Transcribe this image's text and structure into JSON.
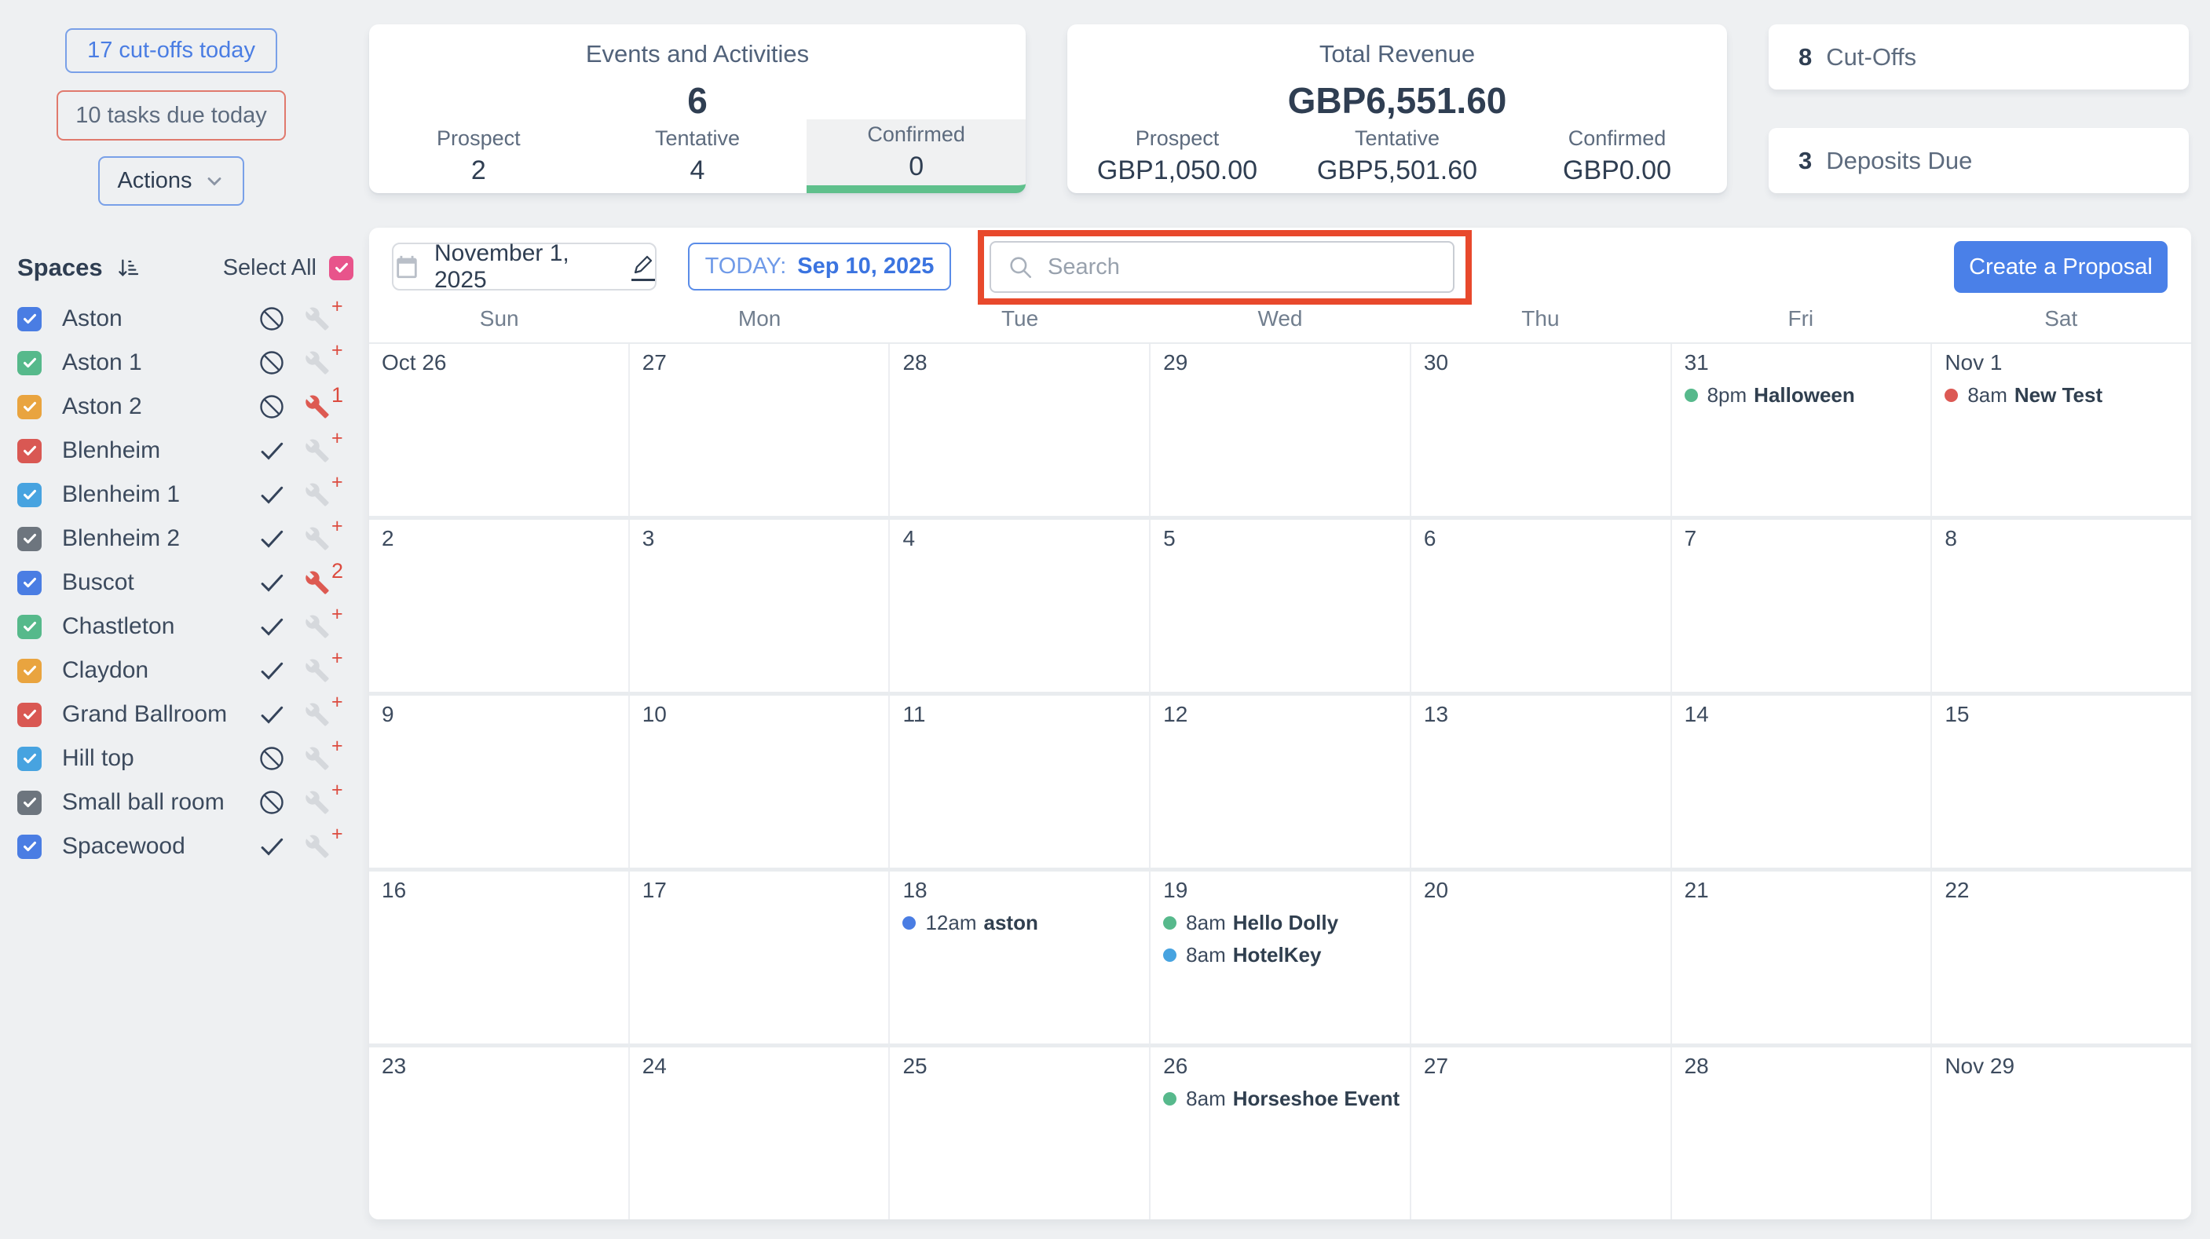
{
  "top_left": {
    "cutoffs_button": "17 cut-offs today",
    "tasks_button": "10 tasks due today",
    "actions_button": "Actions"
  },
  "stats": {
    "events": {
      "title": "Events and Activities",
      "total": "6",
      "columns": [
        {
          "label": "Prospect",
          "value": "2",
          "selected": false
        },
        {
          "label": "Tentative",
          "value": "4",
          "selected": false
        },
        {
          "label": "Confirmed",
          "value": "0",
          "selected": true
        }
      ]
    },
    "revenue": {
      "title": "Total Revenue",
      "total": "GBP6,551.60",
      "columns": [
        {
          "label": "Prospect",
          "value": "GBP1,050.00"
        },
        {
          "label": "Tentative",
          "value": "GBP5,501.60"
        },
        {
          "label": "Confirmed",
          "value": "GBP0.00"
        }
      ]
    },
    "side_cards": [
      {
        "count": "8",
        "label": "Cut-Offs"
      },
      {
        "count": "3",
        "label": "Deposits Due"
      }
    ]
  },
  "sidebar": {
    "title": "Spaces",
    "select_all_label": "Select All",
    "select_all_checked": true,
    "items": [
      {
        "label": "Aston",
        "checkbox_color": "#4a7de3",
        "status": "blocked",
        "wrench_badge": "+",
        "wrench_alert": false
      },
      {
        "label": "Aston 1",
        "checkbox_color": "#56b98b",
        "status": "blocked",
        "wrench_badge": "+",
        "wrench_alert": false
      },
      {
        "label": "Aston 2",
        "checkbox_color": "#e9a43f",
        "status": "blocked",
        "wrench_badge": "1",
        "wrench_alert": true
      },
      {
        "label": "Blenheim",
        "checkbox_color": "#d95853",
        "status": "available",
        "wrench_badge": "+",
        "wrench_alert": false
      },
      {
        "label": "Blenheim 1",
        "checkbox_color": "#47a3e0",
        "status": "available",
        "wrench_badge": "+",
        "wrench_alert": false
      },
      {
        "label": "Blenheim 2",
        "checkbox_color": "#6d757e",
        "status": "available",
        "wrench_badge": "+",
        "wrench_alert": false
      },
      {
        "label": "Buscot",
        "checkbox_color": "#4a7de3",
        "status": "available",
        "wrench_badge": "2",
        "wrench_alert": true
      },
      {
        "label": "Chastleton",
        "checkbox_color": "#56b98b",
        "status": "available",
        "wrench_badge": "+",
        "wrench_alert": false
      },
      {
        "label": "Claydon",
        "checkbox_color": "#e9a43f",
        "status": "available",
        "wrench_badge": "+",
        "wrench_alert": false
      },
      {
        "label": "Grand Ballroom",
        "checkbox_color": "#d95853",
        "status": "available",
        "wrench_badge": "+",
        "wrench_alert": false
      },
      {
        "label": "Hill top",
        "checkbox_color": "#47a3e0",
        "status": "blocked",
        "wrench_badge": "+",
        "wrench_alert": false
      },
      {
        "label": "Small ball room",
        "checkbox_color": "#6d757e",
        "status": "blocked",
        "wrench_badge": "+",
        "wrench_alert": false
      },
      {
        "label": "Spacewood",
        "checkbox_color": "#4a7de3",
        "status": "available",
        "wrench_badge": "+",
        "wrench_alert": false
      }
    ]
  },
  "calendar": {
    "date_label": "November 1, 2025",
    "today_prefix": "TODAY:",
    "today_date": "Sep 10, 2025",
    "search_placeholder": "Search",
    "create_button": "Create a Proposal",
    "day_headers": [
      "Sun",
      "Mon",
      "Tue",
      "Wed",
      "Thu",
      "Fri",
      "Sat"
    ],
    "weeks": [
      [
        {
          "date": "Oct 26"
        },
        {
          "date": "27"
        },
        {
          "date": "28"
        },
        {
          "date": "29"
        },
        {
          "date": "30"
        },
        {
          "date": "31",
          "events": [
            {
              "dot": "#57b98c",
              "time": "8pm",
              "title": "Halloween"
            }
          ]
        },
        {
          "date": "Nov 1",
          "events": [
            {
              "dot": "#dc5954",
              "time": "8am",
              "title": "New Test"
            }
          ]
        }
      ],
      [
        {
          "date": "2"
        },
        {
          "date": "3"
        },
        {
          "date": "4"
        },
        {
          "date": "5"
        },
        {
          "date": "6"
        },
        {
          "date": "7"
        },
        {
          "date": "8"
        }
      ],
      [
        {
          "date": "9"
        },
        {
          "date": "10"
        },
        {
          "date": "11"
        },
        {
          "date": "12"
        },
        {
          "date": "13"
        },
        {
          "date": "14"
        },
        {
          "date": "15"
        }
      ],
      [
        {
          "date": "16"
        },
        {
          "date": "17"
        },
        {
          "date": "18",
          "events": [
            {
              "dot": "#4a7de3",
              "time": "12am",
              "title": "aston"
            }
          ]
        },
        {
          "date": "19",
          "events": [
            {
              "dot": "#57b98c",
              "time": "8am",
              "title": "Hello Dolly"
            },
            {
              "dot": "#47a3e0",
              "time": "8am",
              "title": "HotelKey"
            }
          ]
        },
        {
          "date": "20"
        },
        {
          "date": "21"
        },
        {
          "date": "22"
        }
      ],
      [
        {
          "date": "23"
        },
        {
          "date": "24"
        },
        {
          "date": "25"
        },
        {
          "date": "26",
          "events": [
            {
              "dot": "#57b98c",
              "time": "8am",
              "title": "Horseshoe Event"
            }
          ]
        },
        {
          "date": "27"
        },
        {
          "date": "28"
        },
        {
          "date": "Nov 29"
        }
      ]
    ]
  },
  "colors": {
    "page_background": "#eef0f2",
    "accent_blue": "#4a80e8",
    "link_blue": "#4a7de3",
    "highlight_red": "#e8492c",
    "confirmed_green_bar": "#5fc08c",
    "select_all_pink": "#e8548b",
    "wrench_default": "#d5d8dc",
    "wrench_alert": "#dd5a52",
    "badge_red": "#dc4b3f",
    "status_icon": "#34435a"
  },
  "icons": {
    "sort": "arrow-down-with-bars",
    "calendar": "calendar-grid",
    "edit": "pencil-underline",
    "search": "magnifier",
    "dropdown": "chevron-down",
    "blocked": "circle-slash",
    "available": "checkmark",
    "maintenance": "wrench",
    "checkbox_check": "white-checkmark"
  }
}
